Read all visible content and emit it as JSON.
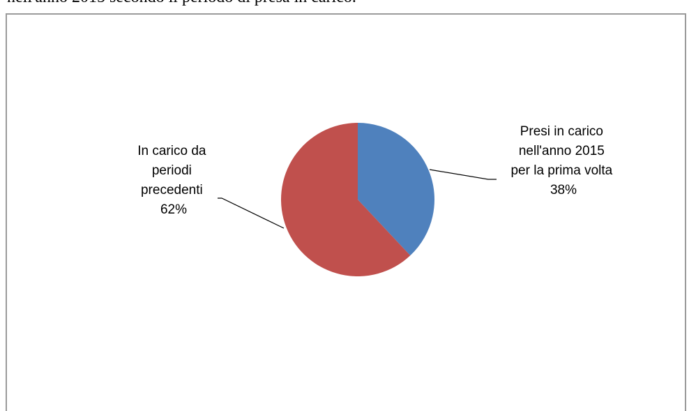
{
  "caption": "nell'anno 2015 secondo il periodo di presa in carico.",
  "chart_data": {
    "type": "pie",
    "slices": [
      {
        "label_lines": [
          "Presi in carico",
          "nell'anno 2015",
          "per la prima volta"
        ],
        "percent_label": "38%",
        "value": 38,
        "color": "#4f81bd"
      },
      {
        "label_lines": [
          "In carico da",
          "periodi",
          "precedenti"
        ],
        "percent_label": "62%",
        "value": 62,
        "color": "#c0504d"
      }
    ]
  }
}
